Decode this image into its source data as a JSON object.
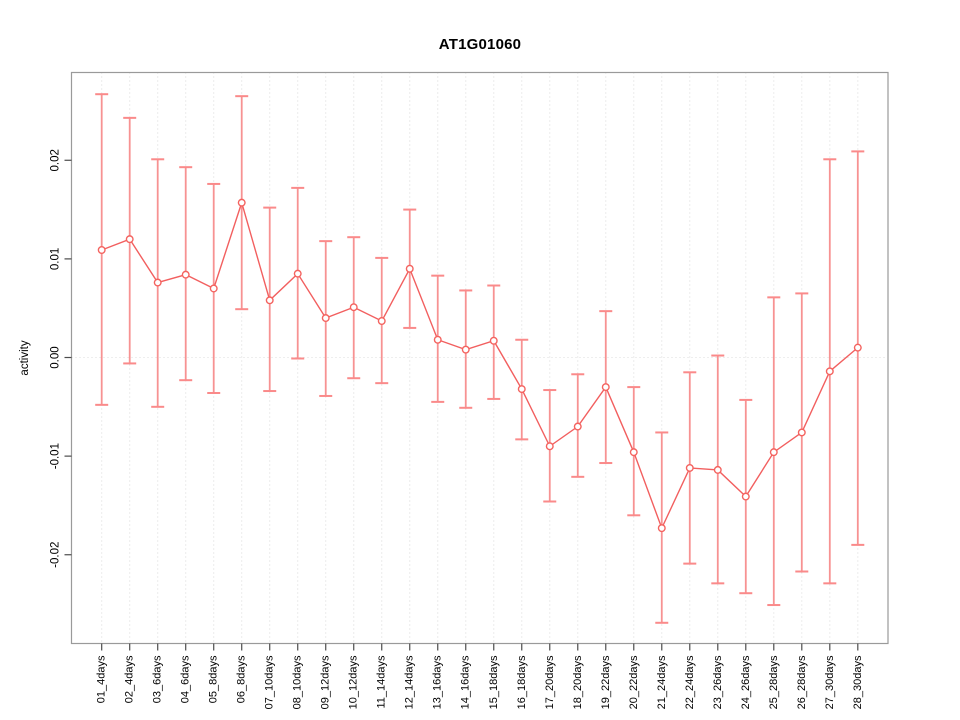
{
  "title": "AT1G01060",
  "colors": {
    "point": "#f4635f",
    "series_line": "#f25f5f",
    "error_bar": "#f79292",
    "error_cap": "#fa8a8a",
    "grid": "#d9d9d9",
    "zero_line": "#dcdcdc",
    "box": "#9a9a9a",
    "tick": "#4d4d4d",
    "text": "#000000",
    "background": "#ffffff"
  },
  "chart_data": {
    "type": "scatter",
    "subtype": "points-with-error-bars-and-connecting-line",
    "title": "AT1G01060",
    "xlabel": "",
    "ylabel": "activity",
    "legend": "none",
    "grid": {
      "vertical_dotted_per_category": true,
      "horizontal_dotted_zero_line": true
    },
    "ylim": [
      -0.029,
      0.0289
    ],
    "y_ticks": [
      -0.02,
      -0.01,
      0,
      0.01,
      0.02
    ],
    "y_tick_labels": [
      "-0.02",
      "-0.01",
      "0.00",
      "0.01",
      "0.02"
    ],
    "categories": [
      "01_4days",
      "02_4days",
      "03_6days",
      "04_6days",
      "05_8days",
      "06_8days",
      "07_10days",
      "08_10days",
      "09_12days",
      "10_12days",
      "11_14days",
      "12_14days",
      "13_16days",
      "14_16days",
      "15_18days",
      "16_18days",
      "17_20days",
      "18_20days",
      "19_22days",
      "20_22days",
      "21_24days",
      "22_24days",
      "23_26days",
      "24_26days",
      "25_28days",
      "26_28days",
      "27_30days",
      "28_30days"
    ],
    "series": [
      {
        "name": "activity",
        "values": [
          0.0109,
          0.012,
          0.0076,
          0.0084,
          0.007,
          0.0157,
          0.0058,
          0.0085,
          0.004,
          0.0051,
          0.0037,
          0.009,
          0.0018,
          0.0008,
          0.0017,
          -0.0032,
          -0.009,
          -0.007,
          -0.003,
          -0.0096,
          -0.0173,
          -0.0112,
          -0.0114,
          -0.0141,
          -0.0096,
          -0.0076,
          -0.0014,
          0.001
        ],
        "upper": [
          0.0267,
          0.0243,
          0.0201,
          0.0193,
          0.0176,
          0.0265,
          0.0152,
          0.0172,
          0.0118,
          0.0122,
          0.0101,
          0.015,
          0.0083,
          0.0068,
          0.0073,
          0.0018,
          -0.0033,
          -0.0017,
          0.0047,
          -0.003,
          -0.0076,
          -0.0015,
          0.0002,
          -0.0043,
          0.0061,
          0.0065,
          0.0201,
          0.0209
        ],
        "lower": [
          -0.0048,
          -0.0006,
          -0.005,
          -0.0023,
          -0.0036,
          0.0049,
          -0.0034,
          -0.0001,
          -0.0039,
          -0.0021,
          -0.0026,
          0.003,
          -0.0045,
          -0.0051,
          -0.0042,
          -0.0083,
          -0.0146,
          -0.0121,
          -0.0107,
          -0.016,
          -0.0269,
          -0.0209,
          -0.0229,
          -0.0239,
          -0.0251,
          -0.0217,
          -0.0229,
          -0.019
        ]
      }
    ]
  }
}
